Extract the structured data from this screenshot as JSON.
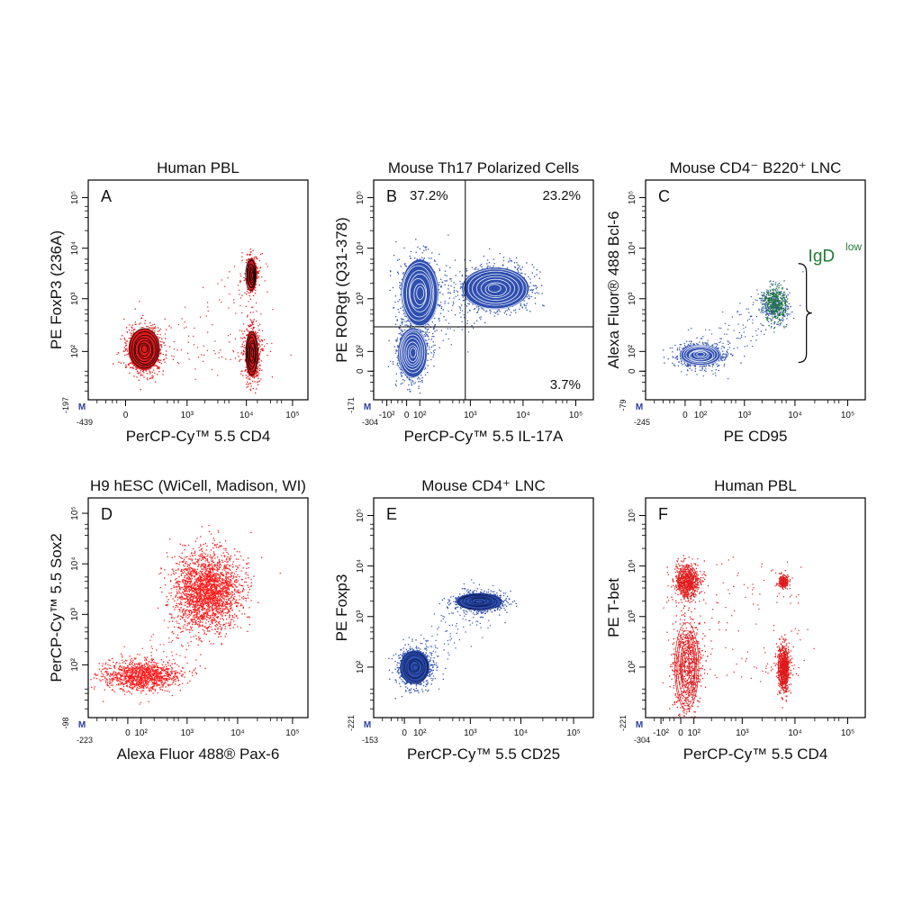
{
  "figure": {
    "panels": [
      {
        "letter": "A",
        "title": "Human PBL",
        "xlabel": "PerCP-Cy™ 5.5   CD4",
        "ylabel": "PE  FoxP3 (236A)",
        "x_min_label": "-439",
        "y_min_label": "-197",
        "x_ticks": [
          "0",
          "10³",
          "10⁴",
          "10⁵"
        ],
        "y_ticks": [
          "10²",
          "10³",
          "10⁴",
          "10⁵"
        ],
        "color": "#e0191b",
        "contour_color": "#000000",
        "marker": "M"
      },
      {
        "letter": "B",
        "title": "Mouse Th17 Polarized Cells",
        "xlabel": "PerCP-Cy™ 5.5   IL-17A",
        "ylabel": "PE  RORgt (Q31-378)",
        "x_min_label": "-304",
        "y_min_label": "-171",
        "x_ticks": [
          "-10²",
          "0",
          "10²",
          "10³",
          "10⁴",
          "10⁵"
        ],
        "y_ticks": [
          "0",
          "10²",
          "10³",
          "10⁴",
          "10⁵"
        ],
        "color": "#2f4fb0",
        "contour_color": "#ffffff",
        "marker": "M",
        "quadrants": [
          "37.2%",
          "23.2%",
          "3.7%"
        ]
      },
      {
        "letter": "C",
        "title": "Mouse CD4⁻ B220⁺ LNC",
        "xlabel": "PE   CD95",
        "ylabel": "Alexa Fluor® 488  Bcl-6",
        "x_min_label": "-245",
        "y_min_label": "-79",
        "x_ticks": [
          "0",
          "10²",
          "10³",
          "10⁴",
          "10⁵"
        ],
        "y_ticks": [
          "0",
          "10²",
          "10³",
          "10⁴",
          "10⁵"
        ],
        "color": "#2f4fb0",
        "contour_color": "#ffffff",
        "marker": "M",
        "gate_label": "IgD",
        "gate_sup": "low",
        "gate_color": "#1e7b34"
      },
      {
        "letter": "D",
        "title": "H9 hESC (WiCell, Madison, WI)",
        "xlabel": "Alexa Fluor 488® Pax-6",
        "ylabel": "PerCP-Cy™ 5.5 Sox2",
        "x_min_label": "-223",
        "y_min_label": "-98",
        "x_ticks": [
          "0",
          "10²",
          "10³",
          "10⁴",
          "10⁵"
        ],
        "y_ticks": [
          "10²",
          "10³",
          "10⁴",
          "10⁵"
        ],
        "color": "#ff1a1a",
        "contour_color": "#ff1a1a",
        "marker": "M"
      },
      {
        "letter": "E",
        "title": "Mouse CD4⁺ LNC",
        "xlabel": "PerCP-Cy™ 5.5   CD25",
        "ylabel": "PE   Foxp3",
        "x_min_label": "-153",
        "y_min_label": "-221",
        "x_ticks": [
          "0",
          "10²",
          "10³",
          "10⁴",
          "10⁵"
        ],
        "y_ticks": [
          "10²",
          "10³",
          "10⁴",
          "10⁵"
        ],
        "color": "#2f4fb0",
        "contour_color": "#0a1a55",
        "marker": "M"
      },
      {
        "letter": "F",
        "title": "Human PBL",
        "xlabel": "PerCP-Cy™ 5.5   CD4",
        "ylabel": "PE  T-bet",
        "x_min_label": "-304",
        "y_min_label": "-221",
        "x_ticks": [
          "-10²",
          "0",
          "10²",
          "10³",
          "10⁴",
          "10⁵"
        ],
        "y_ticks": [
          "10²",
          "10³",
          "10⁴",
          "10⁵"
        ],
        "color": "#e0191b",
        "contour_color": "#e0191b",
        "marker": "M"
      }
    ]
  },
  "chart_data": [
    {
      "type": "scatter",
      "title": "Human PBL",
      "xlabel": "PerCP-Cy™ 5.5   CD4",
      "ylabel": "PE  FoxP3 (236A)",
      "xlim": [
        -439,
        200000
      ],
      "ylim": [
        -197,
        200000
      ],
      "scale": "biexponential",
      "populations": [
        {
          "x": 30,
          "y": 110
        },
        {
          "x": 13000,
          "y": 90
        },
        {
          "x": 13000,
          "y": 3000
        }
      ]
    },
    {
      "type": "scatter",
      "title": "Mouse Th17 Polarized Cells",
      "xlabel": "PerCP-Cy™ 5.5   IL-17A",
      "ylabel": "PE  RORgt (Q31-378)",
      "xlim": [
        -304,
        200000
      ],
      "ylim": [
        -171,
        200000
      ],
      "scale": "biexponential",
      "quadrant_gate": {
        "x": 800,
        "y": 300
      },
      "quadrant_percentages": {
        "upper_left": 37.2,
        "upper_right": 23.2,
        "lower_right": 3.7
      },
      "populations": [
        {
          "x": 20,
          "y": 80
        },
        {
          "x": 100,
          "y": 1300
        },
        {
          "x": 3000,
          "y": 1600
        }
      ]
    },
    {
      "type": "scatter",
      "title": "Mouse CD4⁻ B220⁺ LNC",
      "xlabel": "PE   CD95",
      "ylabel": "Alexa Fluor® 488  Bcl-6",
      "xlim": [
        -245,
        200000
      ],
      "ylim": [
        -79,
        200000
      ],
      "scale": "biexponential",
      "gate": {
        "label": "IgD low"
      },
      "populations": [
        {
          "x": 100,
          "y": 60
        },
        {
          "x": 4000,
          "y": 800
        }
      ]
    },
    {
      "type": "scatter",
      "title": "H9 hESC (WiCell, Madison, WI)",
      "xlabel": "Alexa Fluor 488® Pax-6",
      "ylabel": "PerCP-Cy™ 5.5 Sox2",
      "xlim": [
        -223,
        200000
      ],
      "ylim": [
        -98,
        200000
      ],
      "scale": "biexponential",
      "populations": [
        {
          "x": 100,
          "y": 60
        },
        {
          "x": 2500,
          "y": 3000
        }
      ]
    },
    {
      "type": "scatter",
      "title": "Mouse CD4⁺ LNC",
      "xlabel": "PerCP-Cy™ 5.5   CD25",
      "ylabel": "PE   Foxp3",
      "xlim": [
        -153,
        200000
      ],
      "ylim": [
        -221,
        200000
      ],
      "scale": "biexponential",
      "populations": [
        {
          "x": 40,
          "y": 100
        },
        {
          "x": 1500,
          "y": 2000
        }
      ]
    },
    {
      "type": "scatter",
      "title": "Human PBL",
      "xlabel": "PerCP-Cy™ 5.5   CD4",
      "ylabel": "PE  T-bet",
      "xlim": [
        -304,
        200000
      ],
      "ylim": [
        -221,
        200000
      ],
      "scale": "biexponential",
      "populations": [
        {
          "x": 20,
          "y": 5000
        },
        {
          "x": 20,
          "y": 100
        },
        {
          "x": 6000,
          "y": 5000
        },
        {
          "x": 6000,
          "y": 100
        }
      ]
    }
  ]
}
